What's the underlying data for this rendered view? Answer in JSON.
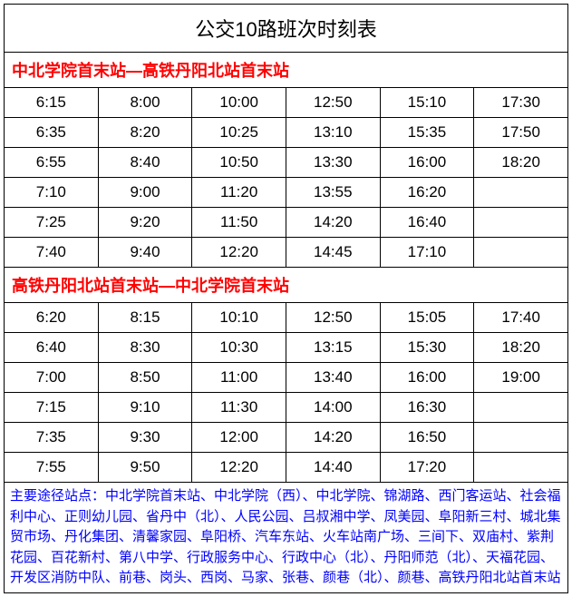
{
  "title": "公交10路班次时刻表",
  "colors": {
    "border": "#000000",
    "bg": "#ffffff",
    "text": "#000000",
    "header_text": "#ff0000",
    "footer_text": "#0000ff"
  },
  "directions": [
    {
      "label": "中北学院首末站—高铁丹阳北站首末站",
      "rows": [
        [
          "6:15",
          "8:00",
          "10:00",
          "12:50",
          "15:10",
          "17:30"
        ],
        [
          "6:35",
          "8:20",
          "10:25",
          "13:10",
          "15:35",
          "17:50"
        ],
        [
          "6:55",
          "8:40",
          "10:50",
          "13:30",
          "16:00",
          "18:20"
        ],
        [
          "7:10",
          "9:00",
          "11:20",
          "13:55",
          "16:20",
          ""
        ],
        [
          "7:25",
          "9:20",
          "11:50",
          "14:20",
          "16:40",
          ""
        ],
        [
          "7:40",
          "9:40",
          "12:20",
          "14:45",
          "17:10",
          ""
        ]
      ]
    },
    {
      "label": "高铁丹阳北站首末站—中北学院首末站",
      "rows": [
        [
          "6:20",
          "8:15",
          "10:10",
          "12:50",
          "15:05",
          "17:40"
        ],
        [
          "6:40",
          "8:30",
          "10:30",
          "13:15",
          "15:30",
          "18:20"
        ],
        [
          "7:00",
          "8:50",
          "11:00",
          "13:40",
          "16:00",
          "19:00"
        ],
        [
          "7:15",
          "9:10",
          "11:30",
          "14:00",
          "16:30",
          ""
        ],
        [
          "7:35",
          "9:30",
          "12:00",
          "14:20",
          "16:50",
          ""
        ],
        [
          "7:55",
          "9:50",
          "12:20",
          "14:40",
          "17:20",
          ""
        ]
      ]
    }
  ],
  "footer": "主要途径站点：中北学院首末站、中北学院（西）、中北学院、锦湖路、西门客运站、社会福利中心、正则幼儿园、省丹中（北）、人民公园、吕叔湘中学、凤美园、阜阳新三村、城北集贸市场、丹化集团、清馨家园、阜阳桥、汽车东站、火车站南广场、三间下、双庙村、紫荆花园、百花新村、第八中学、行政服务中心、行政中心（北）、丹阳师范（北）、天福花园、开发区消防中队、前巷、岗头、西岗、马家、张巷、颜巷（北）、颜巷、高铁丹阳北站首末站"
}
